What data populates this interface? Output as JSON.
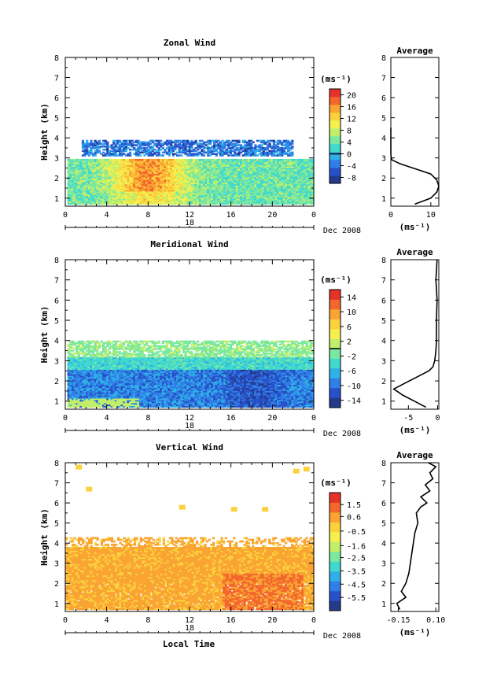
{
  "figure": {
    "month_label": "Dec 2008",
    "xlabel": "Local Time",
    "ylabel": "Height (km)",
    "unit": "(ms⁻¹)",
    "date_label": "18",
    "avg_title": "Average"
  },
  "chart_data": [
    {
      "type": "heatmap",
      "title": "Zonal Wind",
      "xlabel": "Local Time",
      "ylabel": "Height (km)",
      "xticks": [
        "0",
        "4",
        "8",
        "12",
        "16",
        "20",
        "0"
      ],
      "xlim": [
        0,
        24
      ],
      "yticks": [
        "1",
        "2",
        "3",
        "4",
        "5",
        "6",
        "7",
        "8"
      ],
      "ylim": [
        0.6,
        8
      ],
      "colorbar": {
        "label": "(ms⁻¹)",
        "ticks": [
          "20",
          "16",
          "12",
          "8",
          "4",
          "0",
          "-4",
          "-8"
        ],
        "vmin": -10,
        "vmax": 22,
        "contour_level": 0
      },
      "data_extent": {
        "height_km": [
          0.7,
          3.9
        ],
        "time_h": [
          0.2,
          24
        ]
      },
      "description_values": {
        "lower_layer_wind_ms": [
          0,
          20
        ],
        "upper_layer_wind_ms": [
          -8,
          -2
        ]
      },
      "average_profile": {
        "title": "Average",
        "xlabel": "(ms⁻¹)",
        "xticks": [
          "0",
          "10"
        ],
        "xlim": [
          0,
          12
        ],
        "height_km": [
          0.7,
          1.0,
          1.3,
          1.6,
          1.9,
          2.2,
          2.5,
          2.7,
          2.9,
          3.0,
          3.2,
          3.6,
          4.0,
          4.5
        ],
        "values": [
          6,
          10,
          11.5,
          12,
          11.5,
          10,
          5.5,
          2.5,
          0.3,
          0.1,
          0,
          0,
          0,
          0
        ]
      }
    },
    {
      "type": "heatmap",
      "title": "Meridional Wind",
      "xlabel": "Local Time",
      "ylabel": "Height (km)",
      "xticks": [
        "0",
        "4",
        "8",
        "12",
        "16",
        "20",
        "0"
      ],
      "xlim": [
        0,
        24
      ],
      "yticks": [
        "1",
        "2",
        "3",
        "4",
        "5",
        "6",
        "7",
        "8"
      ],
      "ylim": [
        0.6,
        8
      ],
      "colorbar": {
        "label": "(ms⁻¹)",
        "ticks": [
          "14",
          "10",
          "6",
          "2",
          "-2",
          "-6",
          "-10",
          "-14"
        ],
        "vmin": -16,
        "vmax": 16,
        "contour_level": 0
      },
      "data_extent": {
        "height_km": [
          0.7,
          4.0
        ],
        "time_h": [
          0.2,
          24
        ]
      },
      "description_values": {
        "lower_layer_wind_ms": [
          -14,
          -2
        ],
        "upper_layer_wind_ms": [
          0,
          2
        ]
      },
      "average_profile": {
        "title": "Average",
        "xlabel": "(ms⁻¹)",
        "xticks": [
          "-5",
          "0"
        ],
        "xlim": [
          -8,
          0.2
        ],
        "height_km": [
          0.7,
          1.0,
          1.3,
          1.6,
          1.9,
          2.2,
          2.5,
          2.7,
          3.0,
          3.5,
          4.0,
          5.0,
          6.0,
          7.0,
          8.0
        ],
        "values": [
          -2,
          -4,
          -6,
          -7.5,
          -5.5,
          -3.5,
          -1.5,
          -0.8,
          -0.5,
          -0.3,
          -0.2,
          -0.2,
          -0.1,
          -0.3,
          -0.1
        ]
      }
    },
    {
      "type": "heatmap",
      "title": "Vertical Wind",
      "xlabel": "Local Time",
      "ylabel": "Height (km)",
      "xticks": [
        "0",
        "4",
        "8",
        "12",
        "16",
        "20",
        "0"
      ],
      "xlim": [
        0,
        24
      ],
      "yticks": [
        "1",
        "2",
        "3",
        "4",
        "5",
        "6",
        "7",
        "8"
      ],
      "ylim": [
        0.6,
        8
      ],
      "colorbar": {
        "label": "(ms⁻¹)",
        "ticks": [
          "1.5",
          "0.6",
          "-0.5",
          "-1.6",
          "-2.5",
          "-3.5",
          "-4.5",
          "-5.5"
        ],
        "vmin": -6.5,
        "vmax": 2.4
      },
      "data_extent": {
        "height_km": [
          0.7,
          4.3
        ],
        "time_h": [
          0,
          24
        ]
      },
      "description_values": {
        "typical_wind_ms": [
          -0.5,
          1.5
        ]
      },
      "average_profile": {
        "title": "Average",
        "xlabel": "(ms⁻¹)",
        "xticks": [
          "-0.15",
          "0.10"
        ],
        "xlim": [
          -0.2,
          0.12
        ],
        "height_km": [
          0.7,
          1.0,
          1.3,
          1.6,
          2.0,
          2.5,
          3.0,
          3.5,
          4.0,
          4.5,
          5.0,
          5.5,
          5.8,
          6.0,
          6.3,
          6.6,
          6.9,
          7.2,
          7.5,
          7.8,
          8.0
        ],
        "values": [
          -0.14,
          -0.16,
          -0.1,
          -0.13,
          -0.1,
          -0.08,
          -0.07,
          -0.06,
          -0.05,
          -0.04,
          -0.02,
          -0.03,
          0.0,
          0.04,
          0.0,
          0.06,
          0.03,
          0.08,
          0.06,
          0.1,
          0.05
        ]
      }
    }
  ]
}
